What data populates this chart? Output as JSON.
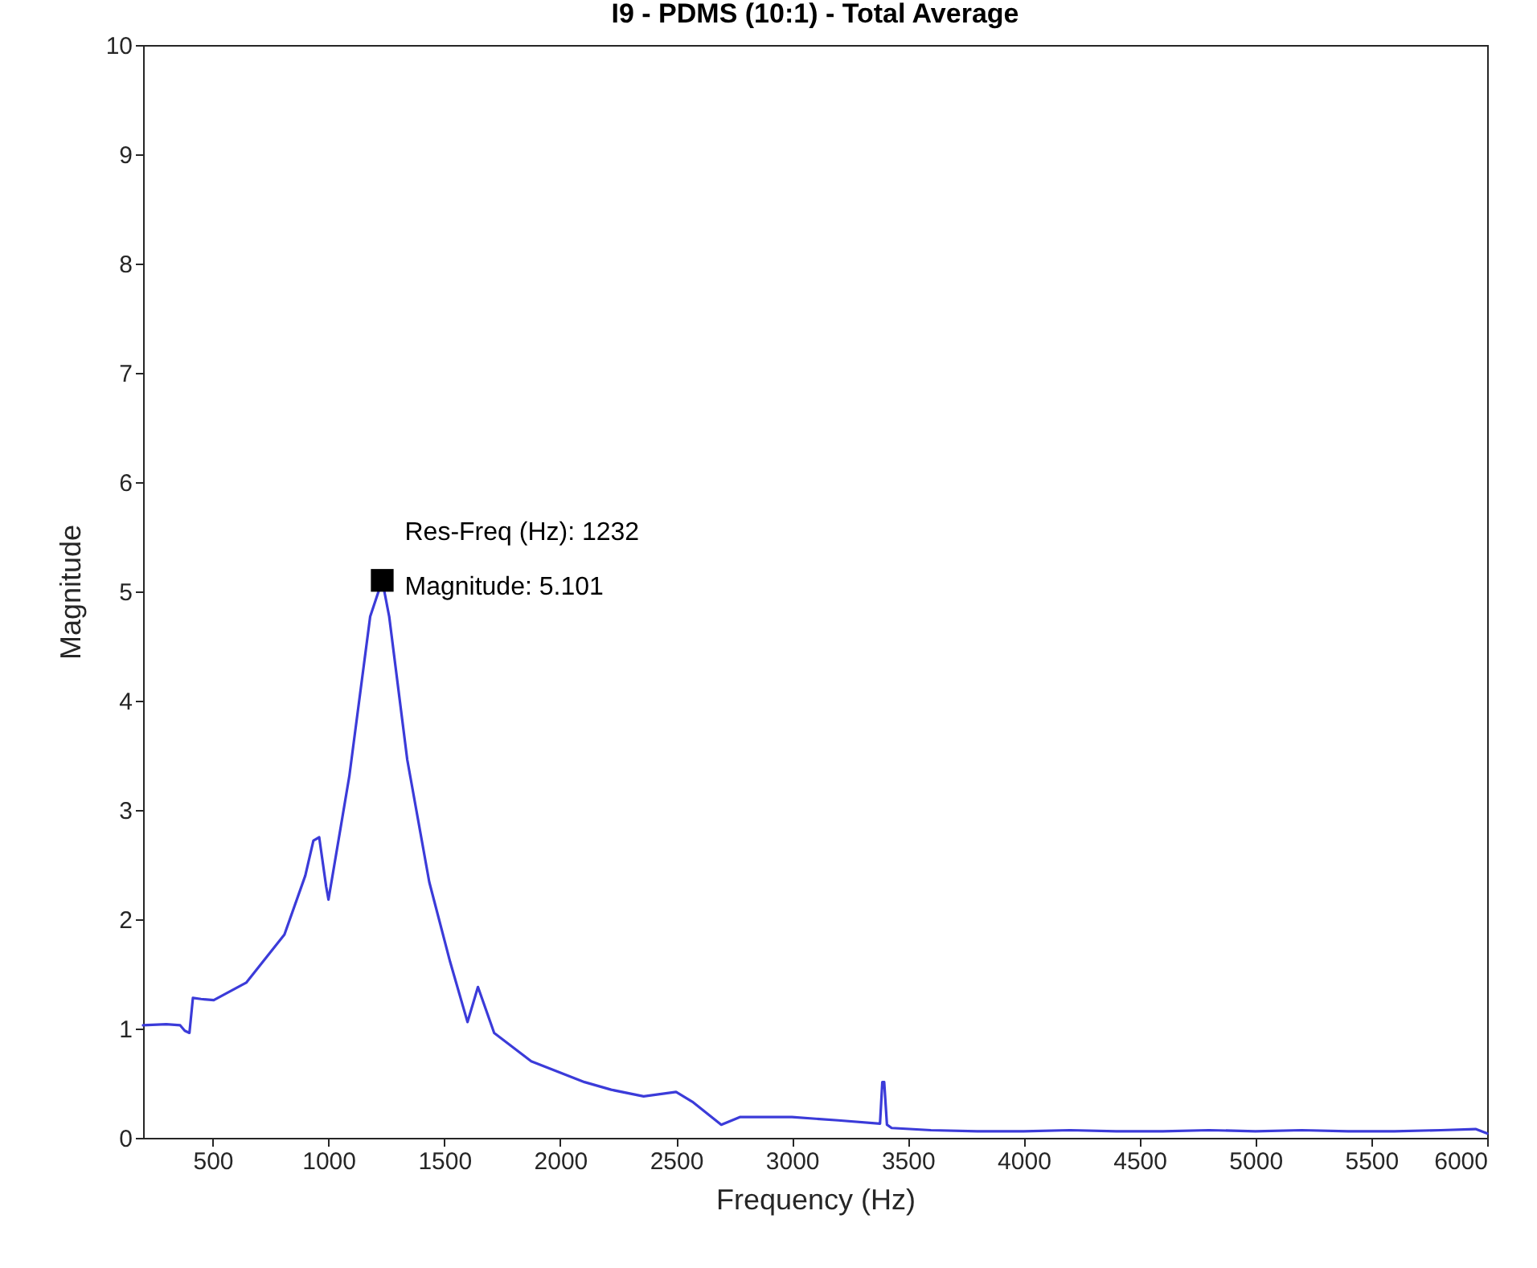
{
  "chart_data": {
    "type": "line",
    "title": "I9 - PDMS (10:1) - Total Average",
    "xlabel": "Frequency (Hz)",
    "ylabel": "Magnitude",
    "xlim": [
      200,
      6000
    ],
    "xticks": [
      500,
      1000,
      1500,
      2000,
      2500,
      3000,
      3500,
      4000,
      4500,
      5000,
      5500,
      6000
    ],
    "ylim": [
      0,
      10
    ],
    "yticks": [
      0,
      1,
      2,
      3,
      4,
      5,
      6,
      7,
      8,
      9,
      10
    ],
    "series": [
      {
        "color": "#3b3bd9",
        "x": [
          200,
          300,
          360,
          380,
          400,
          415,
          450,
          505,
          645,
          810,
          900,
          935,
          960,
          990,
          1000,
          1090,
          1180,
          1232,
          1262,
          1340,
          1435,
          1525,
          1600,
          1645,
          1715,
          1875,
          2105,
          2220,
          2360,
          2500,
          2570,
          2695,
          2775,
          3000,
          3200,
          3380,
          3390,
          3398,
          3410,
          3430,
          3600,
          3800,
          4000,
          4200,
          4400,
          4600,
          4800,
          5000,
          5200,
          5400,
          5600,
          5800,
          5950,
          6000
        ],
        "values": [
          1.03,
          1.04,
          1.03,
          0.98,
          0.96,
          1.28,
          1.27,
          1.26,
          1.42,
          1.86,
          2.4,
          2.72,
          2.75,
          2.3,
          2.18,
          3.31,
          4.77,
          5.101,
          4.77,
          3.46,
          2.34,
          1.61,
          1.06,
          1.38,
          0.96,
          0.7,
          0.51,
          0.44,
          0.38,
          0.42,
          0.33,
          0.12,
          0.19,
          0.19,
          0.16,
          0.13,
          0.51,
          0.51,
          0.12,
          0.09,
          0.07,
          0.06,
          0.06,
          0.07,
          0.06,
          0.06,
          0.07,
          0.06,
          0.07,
          0.06,
          0.06,
          0.07,
          0.08,
          0.04
        ]
      },
      {
        "type": "scatter",
        "color": "#000000",
        "marker": "square",
        "x": [
          1232
        ],
        "values": [
          5.101
        ]
      }
    ],
    "annotations": [
      {
        "text": "Res-Freq (Hz): 1232\nMagnitude: 5.101",
        "x": 1232,
        "y": 5.101
      }
    ]
  }
}
